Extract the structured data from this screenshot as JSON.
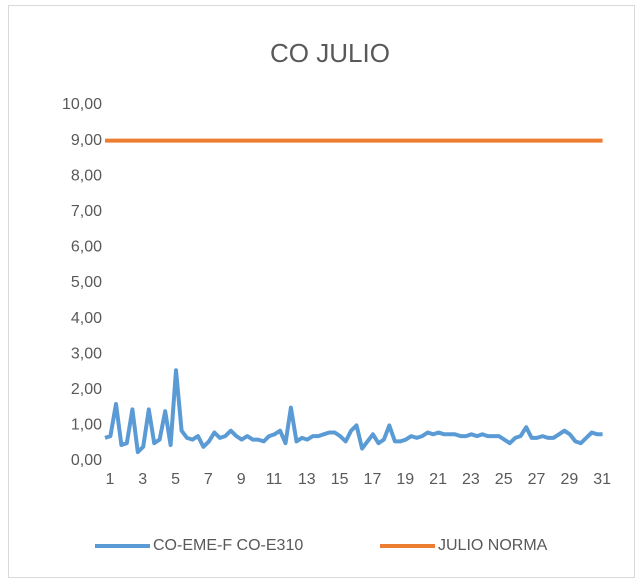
{
  "chart_data": {
    "type": "line",
    "title": "CO JULIO",
    "x": [
      0.7,
      1.03,
      1.37,
      1.7,
      2.03,
      2.37,
      2.7,
      3.03,
      3.37,
      3.7,
      4.03,
      4.37,
      4.7,
      5.03,
      5.37,
      5.7,
      6.03,
      6.37,
      6.7,
      7.03,
      7.37,
      7.7,
      8.03,
      8.37,
      8.7,
      9.03,
      9.37,
      9.7,
      10.03,
      10.37,
      10.7,
      11.03,
      11.37,
      11.7,
      12.03,
      12.37,
      12.7,
      13.03,
      13.37,
      13.7,
      14.03,
      14.37,
      14.7,
      15.03,
      15.37,
      15.7,
      16.03,
      16.37,
      16.7,
      17.03,
      17.37,
      17.7,
      18.03,
      18.37,
      18.7,
      19.03,
      19.37,
      19.7,
      20.03,
      20.37,
      20.7,
      21.03,
      21.37,
      21.7,
      22.03,
      22.37,
      22.7,
      23.03,
      23.37,
      23.7,
      24.03,
      24.37,
      24.7,
      25.03,
      25.37,
      25.7,
      26.03,
      26.37,
      26.7,
      27.03,
      27.37,
      27.7,
      28.03,
      28.37,
      28.7,
      29.03,
      29.37,
      29.7,
      30.03,
      30.37,
      30.7,
      31.03
    ],
    "series": [
      {
        "name": "CO-EME-F CO-E310",
        "color": "#5b9bd5",
        "values": [
          0.65,
          0.7,
          1.6,
          0.45,
          0.5,
          1.45,
          0.25,
          0.4,
          1.45,
          0.5,
          0.6,
          1.4,
          0.45,
          2.55,
          0.85,
          0.65,
          0.6,
          0.7,
          0.4,
          0.55,
          0.8,
          0.65,
          0.7,
          0.85,
          0.7,
          0.6,
          0.7,
          0.6,
          0.6,
          0.55,
          0.7,
          0.75,
          0.85,
          0.5,
          1.5,
          0.55,
          0.65,
          0.6,
          0.7,
          0.7,
          0.75,
          0.8,
          0.8,
          0.7,
          0.55,
          0.85,
          1.0,
          0.35,
          0.55,
          0.75,
          0.5,
          0.6,
          1.0,
          0.55,
          0.55,
          0.6,
          0.7,
          0.65,
          0.7,
          0.8,
          0.75,
          0.8,
          0.75,
          0.75,
          0.75,
          0.7,
          0.7,
          0.75,
          0.7,
          0.75,
          0.7,
          0.7,
          0.7,
          0.6,
          0.5,
          0.65,
          0.7,
          0.95,
          0.65,
          0.65,
          0.7,
          0.65,
          0.65,
          0.75,
          0.85,
          0.75,
          0.55,
          0.5,
          0.65,
          0.8,
          0.75,
          0.75
        ]
      },
      {
        "name": "JULIO NORMA",
        "color": "#ed7d31",
        "values": [
          9,
          9,
          9,
          9,
          9,
          9,
          9,
          9,
          9,
          9,
          9,
          9,
          9,
          9,
          9,
          9,
          9,
          9,
          9,
          9,
          9,
          9,
          9,
          9,
          9,
          9,
          9,
          9,
          9,
          9,
          9,
          9,
          9,
          9,
          9,
          9,
          9,
          9,
          9,
          9,
          9,
          9,
          9,
          9,
          9,
          9,
          9,
          9,
          9,
          9,
          9,
          9,
          9,
          9,
          9,
          9,
          9,
          9,
          9,
          9,
          9,
          9,
          9,
          9,
          9,
          9,
          9,
          9,
          9,
          9,
          9,
          9,
          9,
          9,
          9,
          9,
          9,
          9,
          9,
          9,
          9,
          9,
          9,
          9,
          9,
          9,
          9,
          9,
          9,
          9,
          9,
          9
        ]
      }
    ],
    "xlim": [
      0.7,
      31.6
    ],
    "xticks": [
      1,
      3,
      5,
      7,
      9,
      11,
      13,
      15,
      17,
      19,
      21,
      23,
      25,
      27,
      29,
      31
    ],
    "ylim": [
      0,
      10
    ],
    "yticks": [
      {
        "value": 0,
        "label": "0,00"
      },
      {
        "value": 1,
        "label": "1,00"
      },
      {
        "value": 2,
        "label": "2,00"
      },
      {
        "value": 3,
        "label": "3,00"
      },
      {
        "value": 4,
        "label": "4,00"
      },
      {
        "value": 5,
        "label": "5,00"
      },
      {
        "value": 6,
        "label": "6,00"
      },
      {
        "value": 7,
        "label": "7,00"
      },
      {
        "value": 8,
        "label": "8,00"
      },
      {
        "value": 9,
        "label": "9,00"
      },
      {
        "value": 10,
        "label": "10,00"
      }
    ],
    "legend": "bottom"
  }
}
